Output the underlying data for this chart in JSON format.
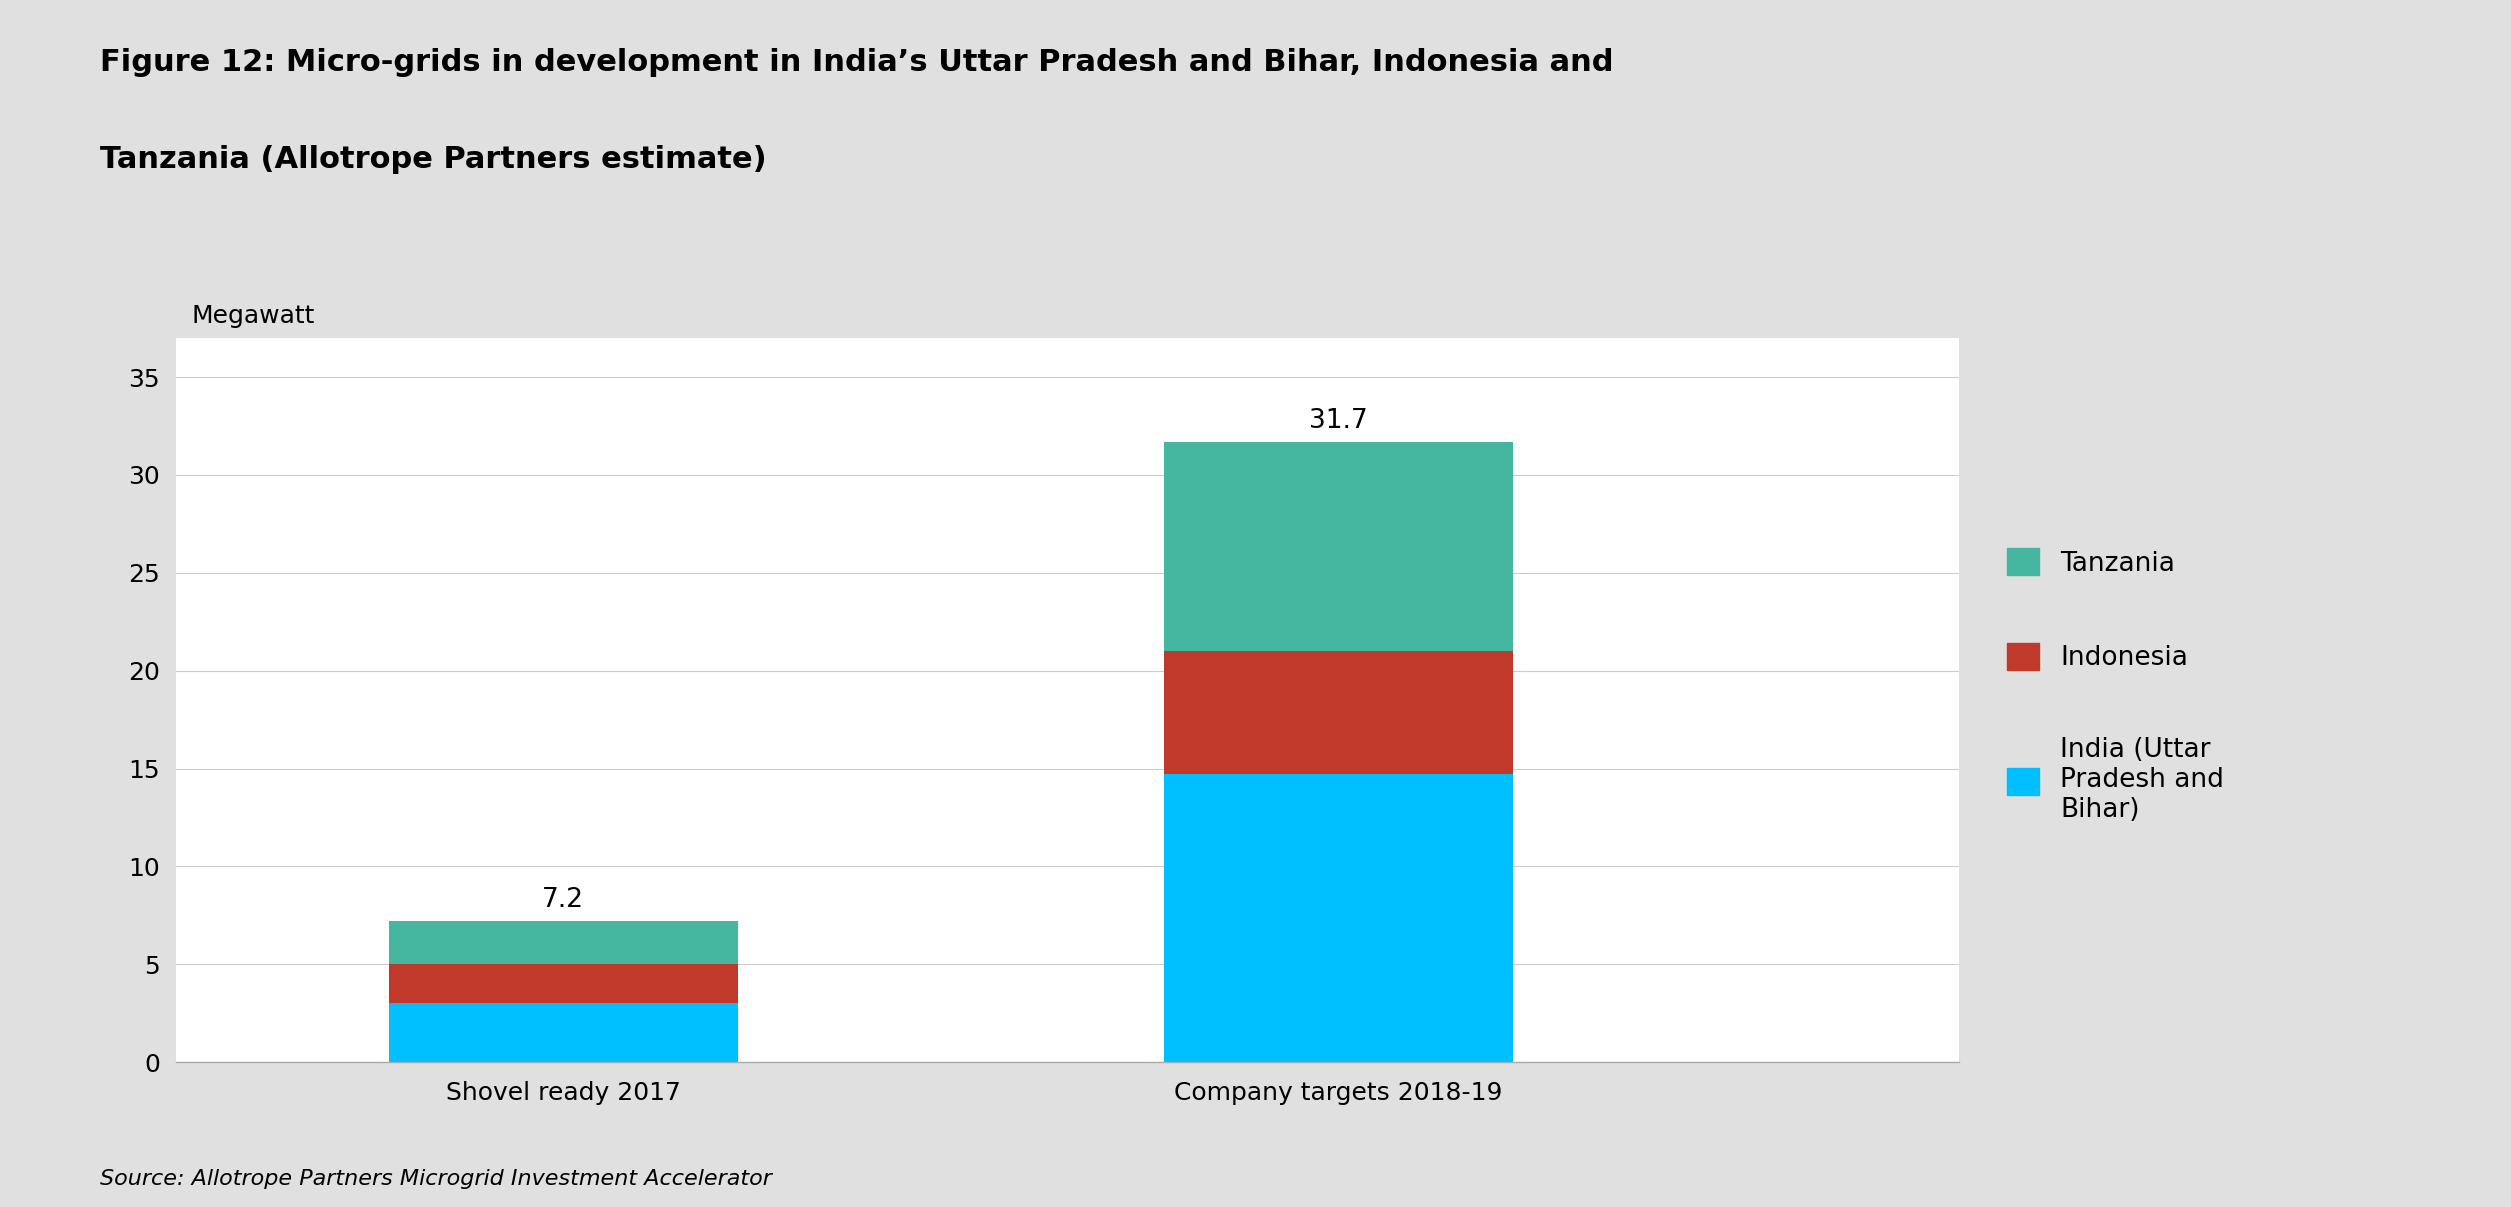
{
  "title_line1": "Figure 12: Micro-grids in development in India’s Uttar Pradesh and Bihar, Indonesia and",
  "title_line2": "Tanzania (Allotrope Partners estimate)",
  "ylabel": "Megawatt",
  "source": "Source: Allotrope Partners Microgrid Investment Accelerator",
  "categories": [
    "Shovel ready 2017",
    "Company targets 2018-19"
  ],
  "india_values": [
    3.0,
    14.7
  ],
  "indonesia_values": [
    2.0,
    6.3
  ],
  "tanzania_values": [
    2.2,
    10.7
  ],
  "india_color": "#00BFFF",
  "indonesia_color": "#C0392B",
  "tanzania_color": "#45B7A0",
  "india_label": "India (Uttar\nPradesh and\nBihar)",
  "indonesia_label": "Indonesia",
  "tanzania_label": "Tanzania",
  "totals": [
    7.2,
    31.7
  ],
  "ylim": [
    0,
    37
  ],
  "yticks": [
    0,
    5,
    10,
    15,
    20,
    25,
    30,
    35
  ],
  "bar_width": 0.45,
  "title_fontsize": 22,
  "ylabel_fontsize": 18,
  "tick_fontsize": 18,
  "legend_fontsize": 19,
  "annotation_fontsize": 19,
  "source_fontsize": 16,
  "background_color": "#FFFFFF",
  "grid_color": "#CCCCCC",
  "title_color": "#000000",
  "figure_bg_color": "#E0E0E0",
  "border_color": "#AAAAAA"
}
